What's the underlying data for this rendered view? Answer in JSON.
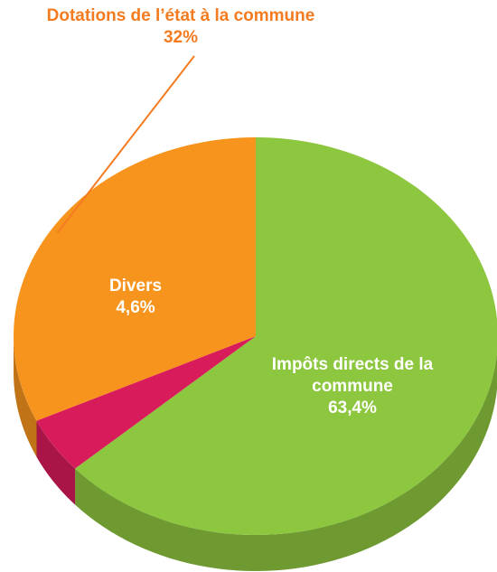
{
  "chart_data": {
    "type": "pie",
    "categories": [
      "Impôts directs de la commune",
      "Divers",
      "Dotations de l’état à la commune"
    ],
    "values": [
      63.4,
      4.6,
      32
    ],
    "value_labels": [
      "63,4%",
      "4,6%",
      "32%"
    ],
    "colors": [
      "#8dc63f",
      "#d81b5a",
      "#f7941d"
    ]
  }
}
